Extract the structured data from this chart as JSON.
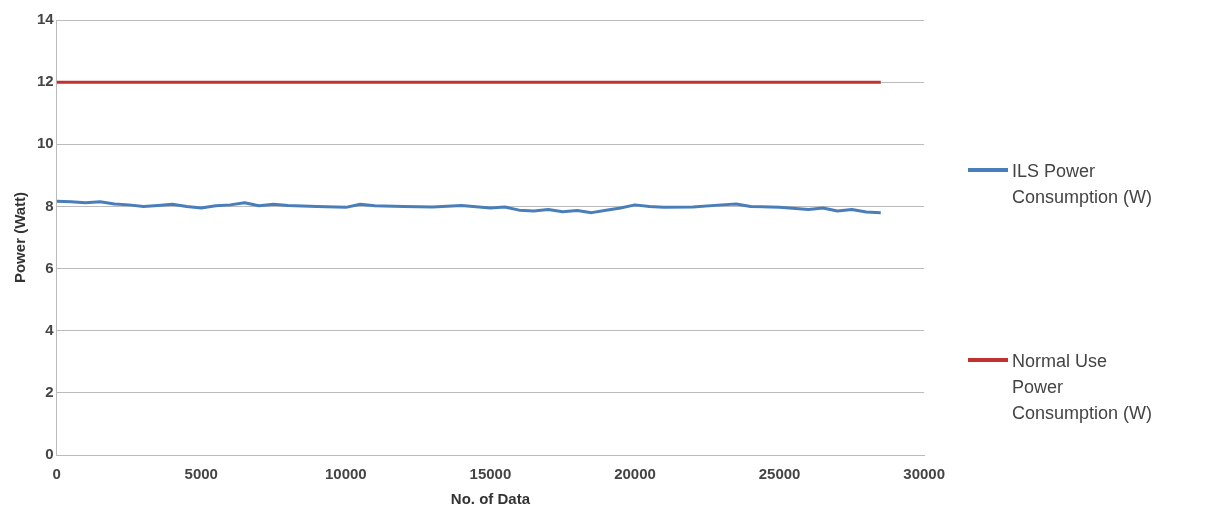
{
  "chart_data": {
    "type": "line",
    "xlabel": "No. of Data",
    "ylabel": "Power (Watt)",
    "xlim": [
      0,
      30000
    ],
    "xticks": [
      0,
      5000,
      10000,
      15000,
      20000,
      25000,
      30000
    ],
    "ylim": [
      0,
      14
    ],
    "yticks": [
      0,
      2,
      4,
      6,
      8,
      10,
      12,
      14
    ],
    "grid": "y",
    "legend": "right",
    "marker": "none",
    "line_style": "solid",
    "series": [
      {
        "name": "ILS Power Consumption (W)",
        "color": "#4a7ebb",
        "x": [
          0,
          500,
          1000,
          1500,
          2000,
          2500,
          3000,
          3500,
          4000,
          4500,
          5000,
          5500,
          6000,
          6500,
          7000,
          7500,
          8000,
          9000,
          10000,
          10500,
          11000,
          12000,
          13000,
          14000,
          15000,
          15500,
          16000,
          16500,
          17000,
          17500,
          18000,
          18500,
          19000,
          19500,
          20000,
          20500,
          21000,
          22000,
          23000,
          23500,
          24000,
          25000,
          26000,
          26500,
          27000,
          27500,
          28000,
          28500
        ],
        "values": [
          8.17,
          8.15,
          8.12,
          8.15,
          8.08,
          8.05,
          8.0,
          8.03,
          8.07,
          8.0,
          7.95,
          8.02,
          8.05,
          8.12,
          8.02,
          8.07,
          8.03,
          8.0,
          7.97,
          8.07,
          8.02,
          8.0,
          7.98,
          8.03,
          7.95,
          7.98,
          7.88,
          7.85,
          7.9,
          7.83,
          7.87,
          7.8,
          7.88,
          7.95,
          8.05,
          8.0,
          7.97,
          7.98,
          8.05,
          8.08,
          8.0,
          7.97,
          7.9,
          7.95,
          7.85,
          7.9,
          7.82,
          7.8
        ]
      },
      {
        "name": "Normal Use Power Consumption (W)",
        "color": "#c0312f",
        "x": [
          0,
          28500
        ],
        "values": [
          12,
          12
        ]
      }
    ]
  }
}
